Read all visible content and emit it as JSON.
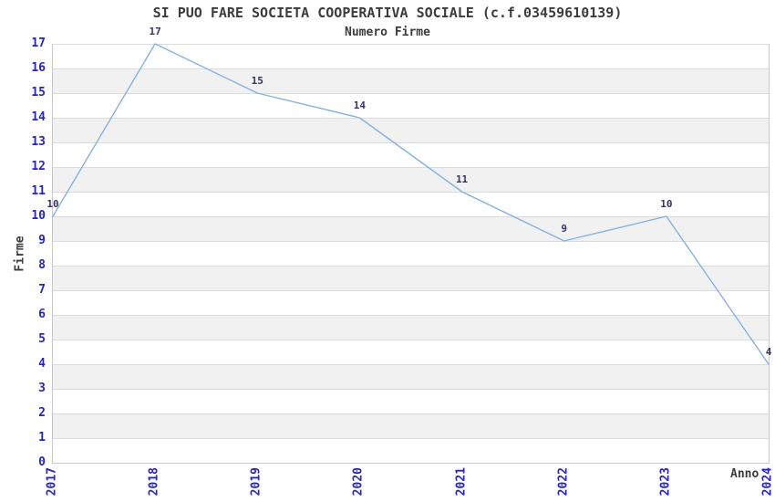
{
  "chart_data": {
    "type": "line",
    "title": "SI PUO FARE SOCIETA COOPERATIVA SOCIALE (c.f.03459610139)",
    "subtitle": "Numero Firme",
    "xlabel": "Anno",
    "ylabel": "Firme",
    "categories": [
      "2017",
      "2018",
      "2019",
      "2020",
      "2021",
      "2022",
      "2023",
      "2024"
    ],
    "series": [
      {
        "name": "Numero Firme",
        "values": [
          10,
          17,
          15,
          14,
          11,
          9,
          10,
          4
        ]
      }
    ],
    "ylim": [
      0,
      17
    ],
    "ytick_step": 1,
    "grid": "horizontal gridline at every integer, alternating gray bands",
    "legend": "none",
    "point_labels_shown": true,
    "x_tick_rotation_deg": 90,
    "colors": {
      "line": "#84b2e4",
      "tick_label": "#2323cc",
      "point_label": "#333366",
      "title_text": "#3c3c3c",
      "band_fill": "#f1f1f1",
      "gridline": "#dcdcdc",
      "axis_line": "#c9c9c9",
      "background": "#ffffff"
    }
  }
}
